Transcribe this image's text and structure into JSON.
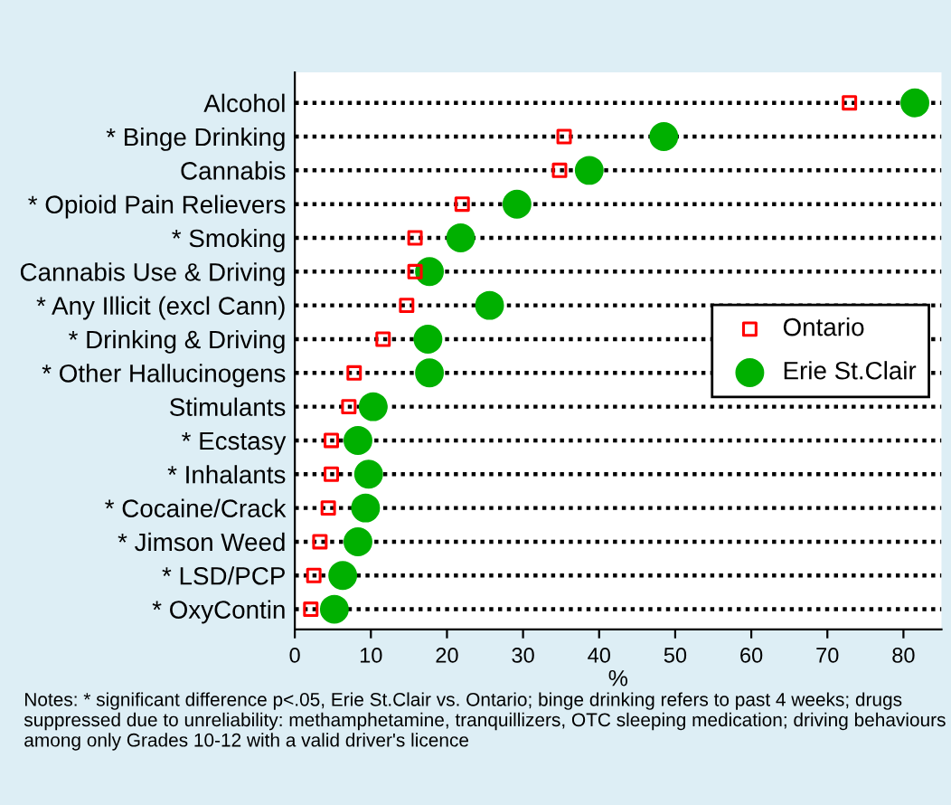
{
  "chart_data": {
    "type": "scatter",
    "orientation": "horizontal",
    "categories": [
      "Alcohol",
      "* Binge Drinking",
      "Cannabis",
      "* Opioid Pain Relievers",
      "* Smoking",
      "Cannabis Use & Driving",
      "* Any Illicit (excl Cann)",
      "* Drinking & Driving",
      "* Other Hallucinogens",
      "Stimulants",
      "* Ecstasy",
      "* Inhalants",
      "* Cocaine/Crack",
      "* Jimson Weed",
      "* LSD/PCP",
      "* OxyContin"
    ],
    "series": [
      {
        "name": "Ontario",
        "color": "#ff0000",
        "marker": "square",
        "values": [
          72.9,
          35.4,
          34.8,
          22.0,
          15.8,
          15.8,
          14.7,
          11.6,
          7.8,
          7.1,
          4.8,
          4.8,
          4.4,
          3.3,
          2.5,
          2.1
        ]
      },
      {
        "name": "Erie St.Clair",
        "color": "#00b000",
        "marker": "circle",
        "values": [
          81.5,
          48.5,
          38.7,
          29.2,
          21.8,
          17.7,
          25.6,
          17.5,
          17.7,
          10.3,
          8.3,
          9.7,
          9.3,
          8.3,
          6.3,
          5.2
        ]
      }
    ],
    "xlabel": "%",
    "xlim": [
      0,
      85
    ],
    "xticks": [
      0,
      10,
      20,
      30,
      40,
      50,
      60,
      70,
      80
    ],
    "grid": "y",
    "legend": "right",
    "annotations": [
      "Notes: * significant difference p<.05, Erie St.Clair vs. Ontario; binge drinking refers to past 4 weeks; drugs suppressed due to unreliability: methamphetamine, tranquillizers, OTC sleeping medication; driving behaviours among only Grades 10-12 with a valid driver's licence"
    ]
  }
}
